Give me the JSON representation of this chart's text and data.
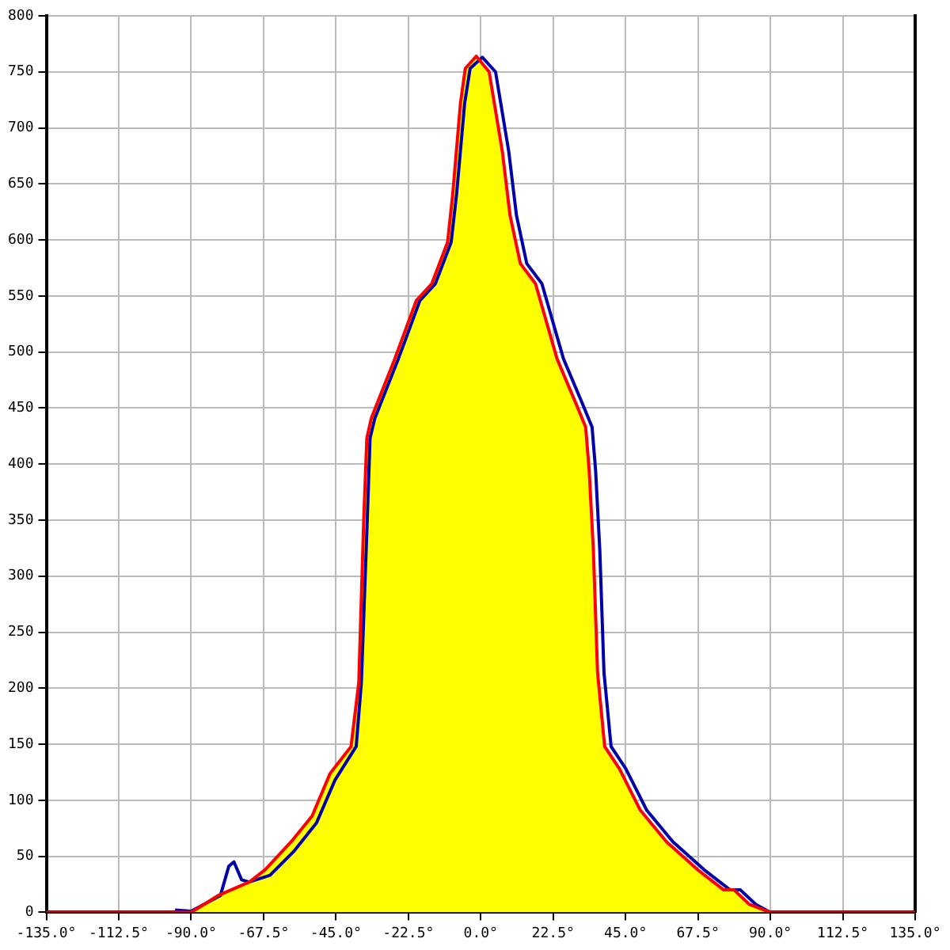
{
  "chart_data": {
    "type": "line",
    "xlim": [
      -135,
      135
    ],
    "ylim": [
      0,
      800
    ],
    "xticks": [
      {
        "value": -135,
        "label": "-135.0°"
      },
      {
        "value": -112.5,
        "label": "-112.5°"
      },
      {
        "value": -90,
        "label": "-90.0°"
      },
      {
        "value": -67.5,
        "label": "-67.5°"
      },
      {
        "value": -45,
        "label": "-45.0°"
      },
      {
        "value": -22.5,
        "label": "-22.5°"
      },
      {
        "value": 0,
        "label": "0.0°"
      },
      {
        "value": 22.5,
        "label": "22.5°"
      },
      {
        "value": 45,
        "label": "45.0°"
      },
      {
        "value": 67.5,
        "label": "67.5°"
      },
      {
        "value": 90,
        "label": "90.0°"
      },
      {
        "value": 112.5,
        "label": "112.5°"
      },
      {
        "value": 135,
        "label": "135.0°"
      }
    ],
    "yticks": [
      0,
      50,
      100,
      150,
      200,
      250,
      300,
      350,
      400,
      450,
      500,
      550,
      600,
      650,
      700,
      750,
      800
    ],
    "grid": true,
    "legend": false,
    "marker": "none",
    "line_style": "solid",
    "series": [
      {
        "type": "area",
        "color": "#ffff00",
        "x": [
          -90,
          -81.6,
          -71.9,
          -67,
          -58.9,
          -52.4,
          -46.8,
          -40.3,
          -37.9,
          -36.4,
          -35.4,
          -34,
          -26.7,
          -20,
          -15.2,
          -10.3,
          -8.7,
          -6.3,
          -4.8,
          -1.4,
          2.6,
          6.7,
          9.1,
          12.3,
          17,
          23.7,
          29.3,
          32.6,
          33.7,
          35,
          36.3,
          38.5,
          43.1,
          49.6,
          57.7,
          67.4,
          75.5,
          78.7,
          83.5,
          89.9
        ],
        "values": [
          0,
          15,
          27,
          38,
          63,
          86,
          124,
          148,
          205,
          347,
          423,
          441,
          494,
          546,
          561,
          598,
          641,
          722,
          753,
          764,
          750,
          679,
          622,
          579,
          561,
          494,
          456,
          433,
          394,
          323,
          214,
          148,
          128,
          91,
          63,
          38,
          20,
          20,
          7,
          0
        ]
      },
      {
        "color": "#0000aa",
        "x": [
          -95,
          -90,
          -80.9,
          -78.3,
          -76.7,
          -74.3,
          -72,
          -65.5,
          -57.9,
          -51,
          -45.3,
          -38.7,
          -37.1,
          -35.3,
          -34.4,
          -32.9,
          -25.6,
          -18.9,
          -14.1,
          -9.2,
          -7.5,
          -5,
          -3.3,
          0.5,
          4.6,
          8.7,
          11.1,
          14.3,
          19,
          25.7,
          31.3,
          34.6,
          35.7,
          37,
          38.3,
          40.5,
          45.1,
          51.6,
          59.7,
          69.4,
          77.5,
          80.7,
          85.5,
          90
        ],
        "values": [
          2,
          1,
          15,
          41,
          45,
          29,
          27,
          33,
          55,
          80,
          118,
          148,
          205,
          347,
          423,
          441,
          494,
          546,
          561,
          598,
          641,
          722,
          753,
          763,
          750,
          679,
          622,
          579,
          561,
          494,
          456,
          433,
          394,
          323,
          214,
          148,
          128,
          91,
          63,
          38,
          20,
          20,
          7,
          0
        ]
      },
      {
        "color": "#ff0000",
        "x": [
          -135,
          -95,
          -90,
          -81.6,
          -71.9,
          -67,
          -58.9,
          -52.4,
          -46.8,
          -40.3,
          -37.9,
          -36.4,
          -35.4,
          -34,
          -26.7,
          -20,
          -15.2,
          -10.3,
          -8.7,
          -6.3,
          -4.8,
          -1.4,
          2.6,
          6.7,
          9.1,
          12.3,
          17,
          23.7,
          29.3,
          32.6,
          33.7,
          35,
          36.3,
          38.5,
          43.1,
          49.6,
          57.7,
          67.4,
          75.5,
          78.7,
          83.5,
          89.9,
          135
        ],
        "values": [
          0,
          0,
          0,
          15,
          27,
          38,
          63,
          86,
          124,
          148,
          205,
          347,
          423,
          441,
          494,
          546,
          561,
          598,
          641,
          722,
          753,
          764,
          750,
          679,
          622,
          579,
          561,
          494,
          456,
          433,
          394,
          323,
          214,
          148,
          128,
          91,
          63,
          38,
          20,
          20,
          7,
          0,
          0
        ]
      }
    ]
  }
}
